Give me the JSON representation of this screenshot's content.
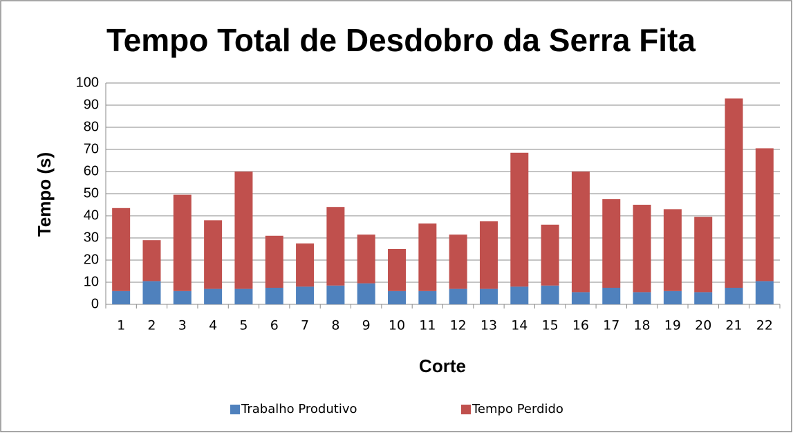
{
  "chart_data": {
    "type": "stacked_bar",
    "title": "Tempo Total de Desdobro da Serra Fita",
    "y_label": "Tempo (s)",
    "x_label": "Corte",
    "categories": [
      "1",
      "2",
      "3",
      "4",
      "5",
      "6",
      "7",
      "8",
      "9",
      "10",
      "11",
      "12",
      "13",
      "14",
      "15",
      "16",
      "17",
      "18",
      "19",
      "20",
      "21",
      "22"
    ],
    "series": [
      {
        "name": "Trabalho Produtivo",
        "color": "#4f81bd",
        "values": [
          6,
          10.5,
          6,
          7,
          7,
          7.5,
          8,
          8.5,
          9.5,
          6,
          6,
          7,
          7,
          8,
          8.5,
          5.5,
          7.5,
          5.5,
          6,
          5.5,
          7.5,
          10.5
        ]
      },
      {
        "name": "Tempo Perdido",
        "color": "#c0504d",
        "values": [
          37.5,
          18.5,
          43.5,
          31,
          53,
          23.5,
          19.5,
          35.5,
          22,
          19,
          30.5,
          24.5,
          30.5,
          60.5,
          27.5,
          54.5,
          40,
          39.5,
          37,
          34,
          85.5,
          60
        ]
      }
    ],
    "ylim": [
      0,
      100
    ],
    "yticks": [
      0,
      10,
      20,
      30,
      40,
      50,
      60,
      70,
      80,
      90,
      100
    ],
    "grid": true,
    "legend": "bottom"
  }
}
